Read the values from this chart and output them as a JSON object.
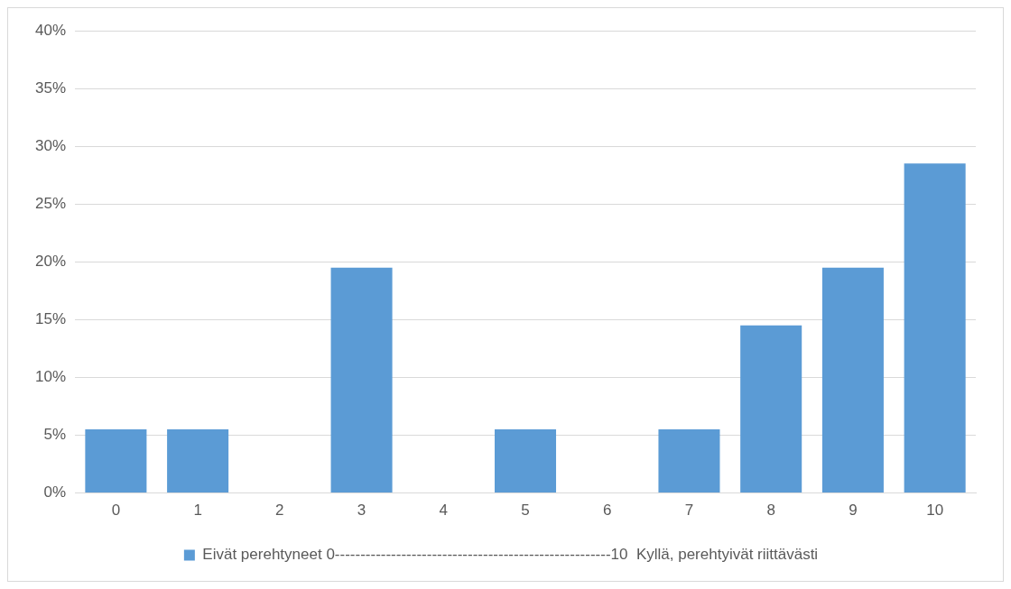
{
  "chart_data": {
    "type": "bar",
    "categories": [
      "0",
      "1",
      "2",
      "3",
      "4",
      "5",
      "6",
      "7",
      "8",
      "9",
      "10"
    ],
    "series": [
      {
        "name": "Eivät perehtyneet 0------------------------------------------------------10  Kyllä, perehtyivät riittävästi",
        "color": "#5b9bd5",
        "values": [
          5.5,
          5.5,
          0,
          19.5,
          0,
          5.5,
          0,
          5.5,
          14.5,
          19.5,
          28.5
        ]
      }
    ],
    "ylim": [
      0,
      40
    ],
    "yticks": [
      {
        "value": 0,
        "label": "0%"
      },
      {
        "value": 5,
        "label": "5%"
      },
      {
        "value": 10,
        "label": "10%"
      },
      {
        "value": 15,
        "label": "15%"
      },
      {
        "value": 20,
        "label": "20%"
      },
      {
        "value": 25,
        "label": "25%"
      },
      {
        "value": 30,
        "label": "30%"
      },
      {
        "value": 35,
        "label": "35%"
      },
      {
        "value": 40,
        "label": "40%"
      }
    ],
    "grid": "y",
    "legend": "bottom"
  }
}
